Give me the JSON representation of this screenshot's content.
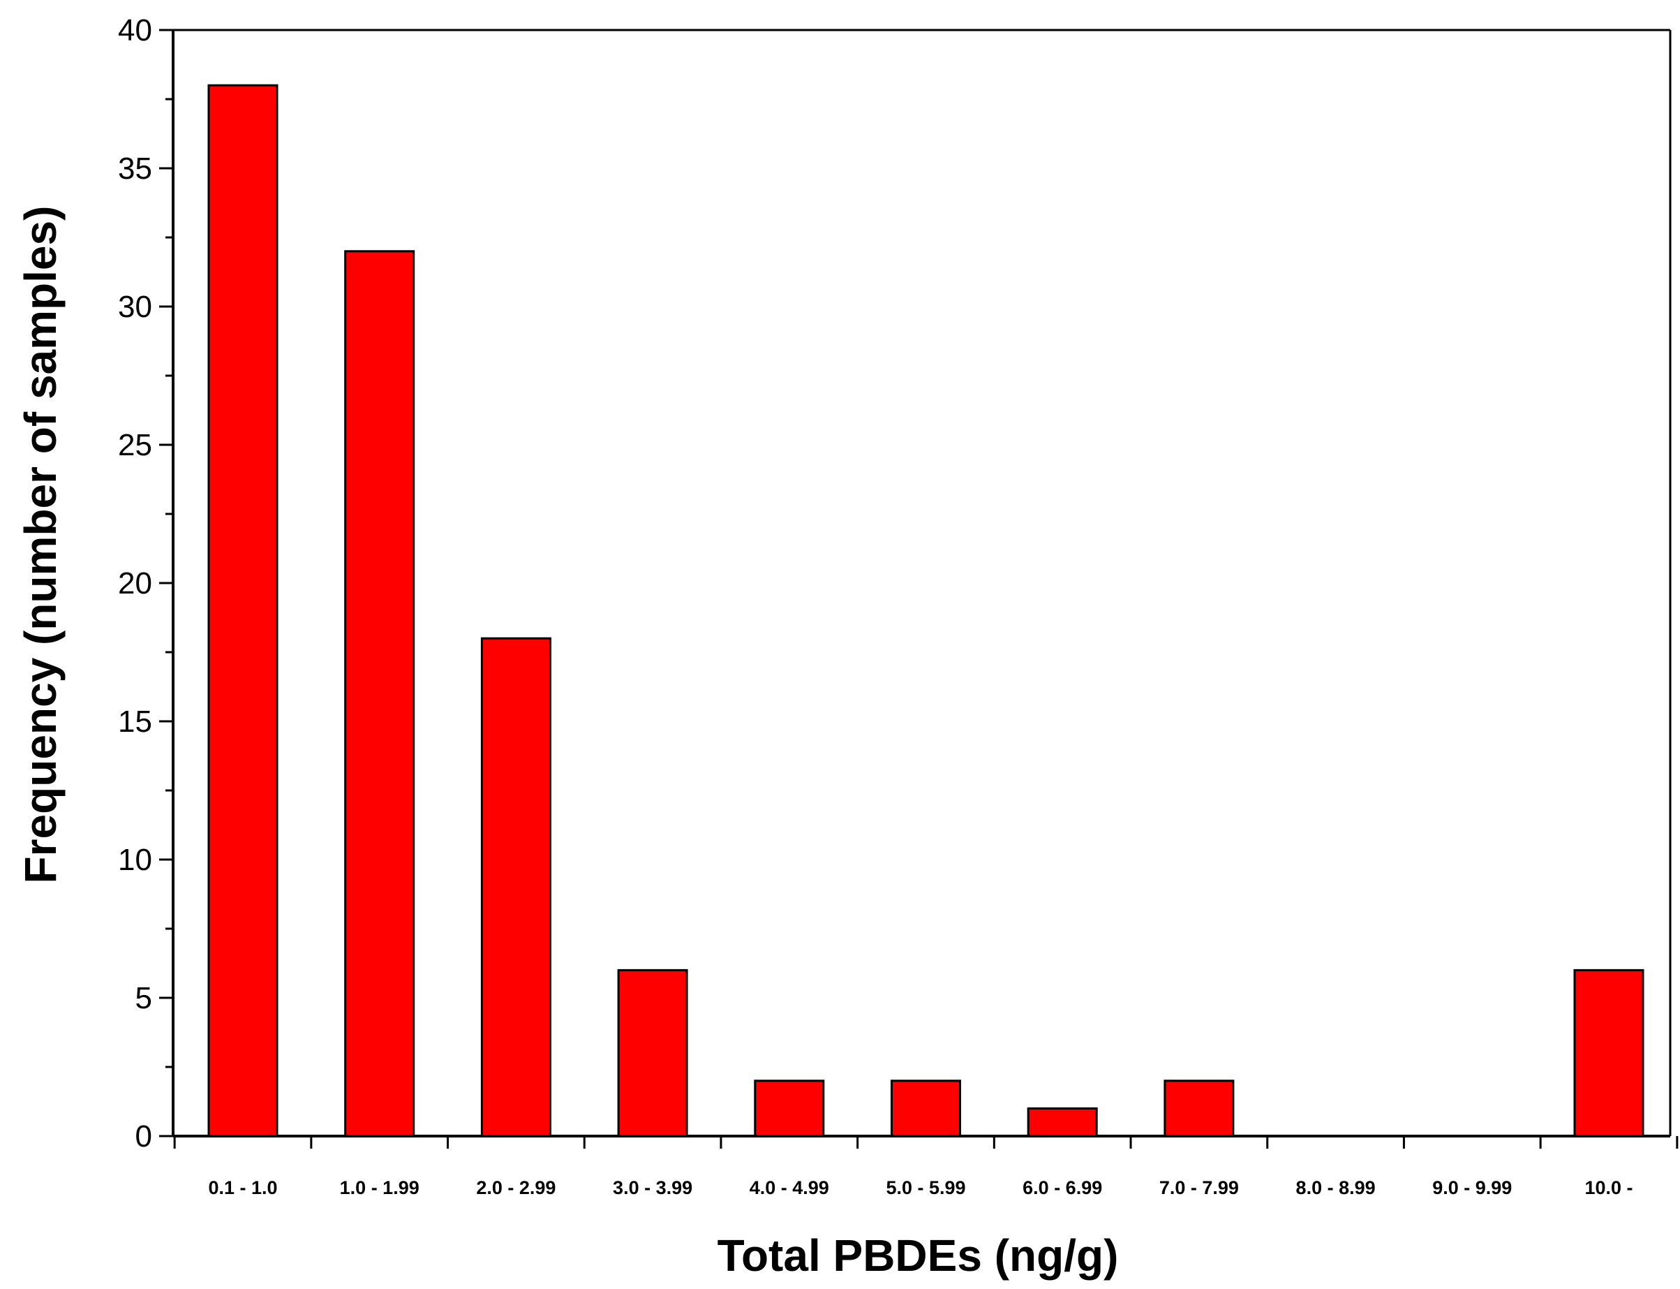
{
  "chart_data": {
    "type": "bar",
    "title": "",
    "xlabel": "Total PBDEs (ng/g)",
    "ylabel": "Frequency (number of samples)",
    "categories": [
      "0.1 - 1.0",
      "1.0 - 1.99",
      "2.0 - 2.99",
      "3.0 - 3.99",
      "4.0 - 4.99",
      "5.0 - 5.99",
      "6.0 - 6.99",
      "7.0 - 7.99",
      "8.0 - 8.99",
      "9.0 - 9.99",
      "10.0 -"
    ],
    "values": [
      38,
      32,
      18,
      6,
      2,
      2,
      1,
      2,
      0,
      0,
      6
    ],
    "ylim": [
      0,
      40
    ],
    "yticks": [
      "0",
      "5",
      "10",
      "15",
      "20",
      "25",
      "30",
      "35",
      "40"
    ],
    "grid": false,
    "legend": "none",
    "bar_color": "#ff0000",
    "bar_edge_color": "#000000"
  }
}
